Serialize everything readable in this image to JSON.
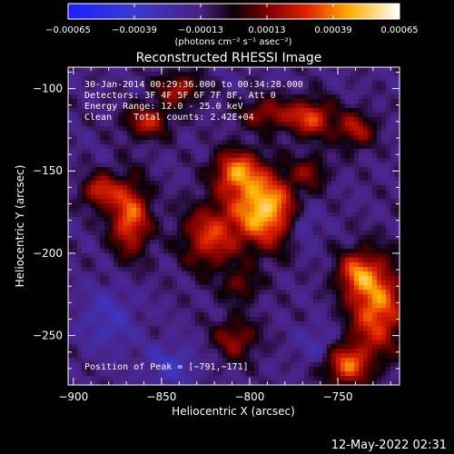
{
  "chart_data": {
    "type": "heatmap",
    "title": "Reconstructed RHESSI Image",
    "xlabel": "Heliocentric X (arcsec)",
    "ylabel": "Heliocentric Y (arcsec)",
    "xlim": [
      -903,
      -715
    ],
    "ylim": [
      -280,
      -87
    ],
    "x_ticks": [
      -900,
      -850,
      -800,
      -750
    ],
    "x_tick_labels": [
      "−900",
      "−850",
      "−800",
      "−750"
    ],
    "y_ticks": [
      -100,
      -150,
      -200,
      -250
    ],
    "y_tick_labels": [
      "−100",
      "−150",
      "−200",
      "−250"
    ],
    "colorbar": {
      "ticks": [
        -0.00065,
        -0.00039,
        -0.00013,
        0.00013,
        0.00039,
        0.00065
      ],
      "tick_labels": [
        "−0.00065",
        "−0.00039",
        "−0.00013",
        "0.00013",
        "0.00039",
        "0.00065"
      ],
      "range": [
        -0.00065,
        0.00065
      ],
      "unit_label": "(photons cm⁻² s⁻¹ asec⁻²)"
    },
    "annotations": {
      "time_range": "30-Jan-2014 00:29:36.000 to 00:34:28.000",
      "detectors": "Detectors: 3F 4F 5F 6F 7F 8F, Att 0",
      "energy_range": "Energy Range: 12.0 - 25.0 keV",
      "clean_counts": "Clean    Total counts: 2.42E+04",
      "peak_position": "Position of Peak = [−791,−171]"
    },
    "peak": {
      "x": -791,
      "y": -171
    },
    "intensity_blobs": [
      {
        "x": -792,
        "y": -173,
        "sx": 13,
        "sy": 16,
        "amp": 1.0
      },
      {
        "x": -808,
        "y": -150,
        "sx": 9,
        "sy": 9,
        "amp": 0.7
      },
      {
        "x": -823,
        "y": -190,
        "sx": 11,
        "sy": 14,
        "amp": 0.6
      },
      {
        "x": -868,
        "y": -178,
        "sx": 8,
        "sy": 16,
        "amp": 0.75
      },
      {
        "x": -885,
        "y": -162,
        "sx": 7,
        "sy": 7,
        "amp": 0.6
      },
      {
        "x": -858,
        "y": -120,
        "sx": 9,
        "sy": 7,
        "amp": 0.55
      },
      {
        "x": -840,
        "y": -100,
        "sx": 9,
        "sy": 7,
        "amp": 0.5
      },
      {
        "x": -790,
        "y": -115,
        "sx": 11,
        "sy": 7,
        "amp": 0.45
      },
      {
        "x": -765,
        "y": -118,
        "sx": 9,
        "sy": 8,
        "amp": 0.65
      },
      {
        "x": -740,
        "y": -125,
        "sx": 8,
        "sy": 8,
        "amp": 0.5
      },
      {
        "x": -765,
        "y": -150,
        "sx": 7,
        "sy": 7,
        "amp": 0.35
      },
      {
        "x": -728,
        "y": -232,
        "sx": 11,
        "sy": 20,
        "amp": 0.8
      },
      {
        "x": -745,
        "y": -268,
        "sx": 9,
        "sy": 9,
        "amp": 0.7
      },
      {
        "x": -740,
        "y": -212,
        "sx": 8,
        "sy": 9,
        "amp": 0.55
      },
      {
        "x": -808,
        "y": -252,
        "sx": 9,
        "sy": 9,
        "amp": 0.45
      },
      {
        "x": -805,
        "y": -220,
        "sx": 7,
        "sy": 7,
        "amp": 0.35
      },
      {
        "x": -880,
        "y": -240,
        "sx": 11,
        "sy": 14,
        "amp": -0.25
      },
      {
        "x": -845,
        "y": -268,
        "sx": 11,
        "sy": 9,
        "amp": -0.28
      },
      {
        "x": -770,
        "y": -182,
        "sx": 6,
        "sy": 9,
        "amp": -0.3
      },
      {
        "x": -760,
        "y": -255,
        "sx": 8,
        "sy": 8,
        "amp": -0.22
      }
    ]
  },
  "footer": {
    "timestamp": "12-May-2022 02:31"
  }
}
